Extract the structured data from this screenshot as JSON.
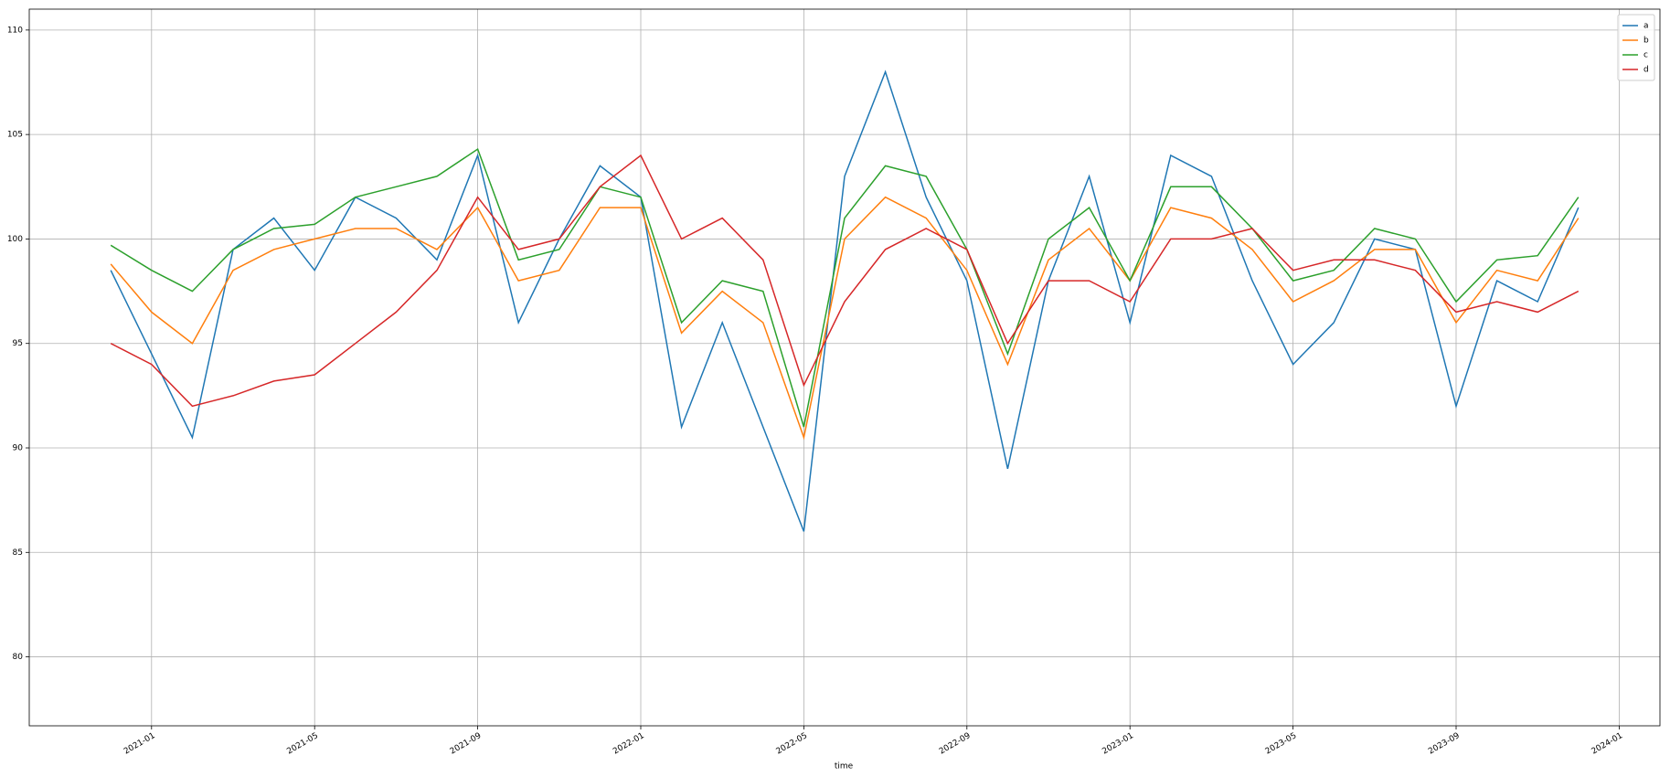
{
  "chart_data": {
    "type": "line",
    "xlabel": "time",
    "x": [
      "2020-12",
      "2021-01",
      "2021-02",
      "2021-03",
      "2021-04",
      "2021-05",
      "2021-06",
      "2021-07",
      "2021-08",
      "2021-09",
      "2021-10",
      "2021-11",
      "2021-12",
      "2022-01",
      "2022-02",
      "2022-03",
      "2022-04",
      "2022-05",
      "2022-06",
      "2022-07",
      "2022-08",
      "2022-09",
      "2022-10",
      "2022-11",
      "2022-12",
      "2023-01",
      "2023-02",
      "2023-03",
      "2023-04",
      "2023-05",
      "2023-06",
      "2023-07",
      "2023-08",
      "2023-09",
      "2023-10",
      "2023-11",
      "2023-12"
    ],
    "series": [
      {
        "name": "a",
        "color": "#1f77b4",
        "values": [
          98.5,
          94.5,
          90.5,
          99.5,
          101,
          98.5,
          102,
          101,
          99,
          104,
          96,
          100,
          103.5,
          102,
          91,
          96,
          91,
          86,
          103,
          108,
          102,
          98,
          89,
          98,
          103,
          96,
          104,
          103,
          98,
          94,
          96,
          100,
          99.5,
          92,
          98,
          97,
          101.5
        ]
      },
      {
        "name": "b",
        "color": "#ff7f0e",
        "values": [
          98.8,
          96.5,
          95,
          98.5,
          99.5,
          100,
          100.5,
          100.5,
          99.5,
          101.5,
          98,
          98.5,
          101.5,
          101.5,
          95.5,
          97.5,
          96,
          90.5,
          100,
          102,
          101,
          98.5,
          94,
          99,
          100.5,
          98,
          101.5,
          101,
          99.5,
          97,
          98,
          99.5,
          99.5,
          96,
          98.5,
          98,
          101
        ]
      },
      {
        "name": "c",
        "color": "#2ca02c",
        "values": [
          99.7,
          98.5,
          97.5,
          99.5,
          100.5,
          100.7,
          102,
          102.5,
          103,
          104.3,
          99,
          99.5,
          102.5,
          102,
          96,
          98,
          97.5,
          91,
          101,
          103.5,
          103,
          99.5,
          94.5,
          100,
          101.5,
          98,
          102.5,
          102.5,
          100.5,
          98,
          98.5,
          100.5,
          100,
          97,
          99,
          99.2,
          102
        ]
      },
      {
        "name": "d",
        "color": "#d62728",
        "values": [
          95,
          94,
          92,
          92.5,
          93.2,
          93.5,
          95,
          96.5,
          98.5,
          102,
          99.5,
          100,
          102.5,
          104,
          100,
          101,
          99,
          93,
          97,
          99.5,
          100.5,
          99.5,
          95,
          98,
          98,
          97,
          100,
          100,
          100.5,
          98.5,
          99,
          99,
          98.5,
          96.5,
          97,
          96.5,
          97.5
        ]
      }
    ],
    "xlim": [
      "2020-10",
      "2024-02"
    ],
    "xticks": [
      "2021-01",
      "2021-05",
      "2021-09",
      "2022-01",
      "2022-05",
      "2022-09",
      "2023-01",
      "2023-05",
      "2023-09",
      "2024-01"
    ],
    "ylim": [
      76.7,
      111.0
    ],
    "yticks": [
      80,
      85,
      90,
      95,
      100,
      105,
      110
    ],
    "grid": true,
    "legend": "upper right"
  }
}
